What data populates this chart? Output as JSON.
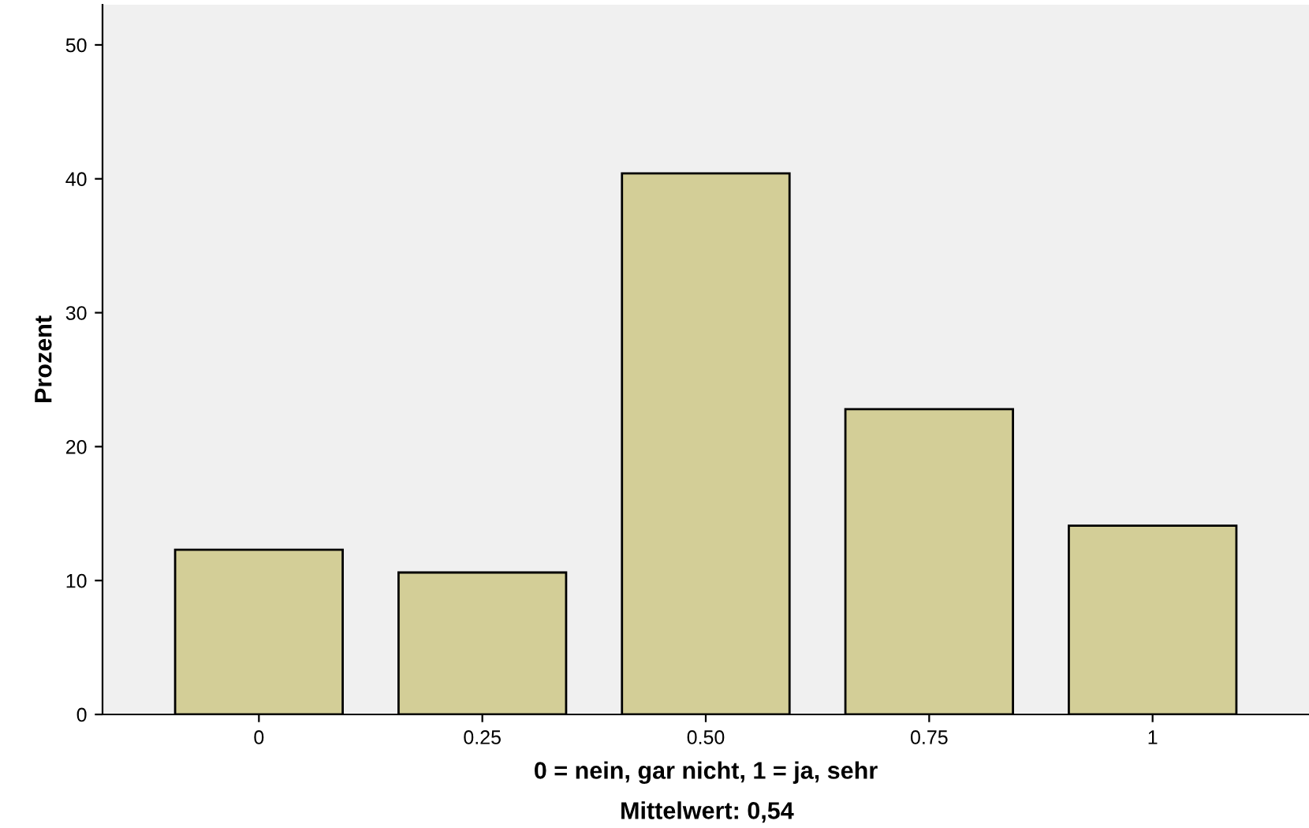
{
  "chart_data": {
    "type": "bar",
    "categories": [
      "0",
      "0.25",
      "0.50",
      "0.75",
      "1"
    ],
    "values": [
      12.3,
      10.6,
      40.4,
      22.8,
      14.1
    ],
    "color": "#d3ce97",
    "ylabel": "Prozent",
    "xlabel": "0 = nein, gar nicht, 1 = ja, sehr",
    "annotations": [
      "Mittelwert: 0,54"
    ],
    "ylim": [
      0,
      53
    ],
    "yticks": [
      0,
      10,
      20,
      30,
      40,
      50
    ],
    "grid": false
  }
}
